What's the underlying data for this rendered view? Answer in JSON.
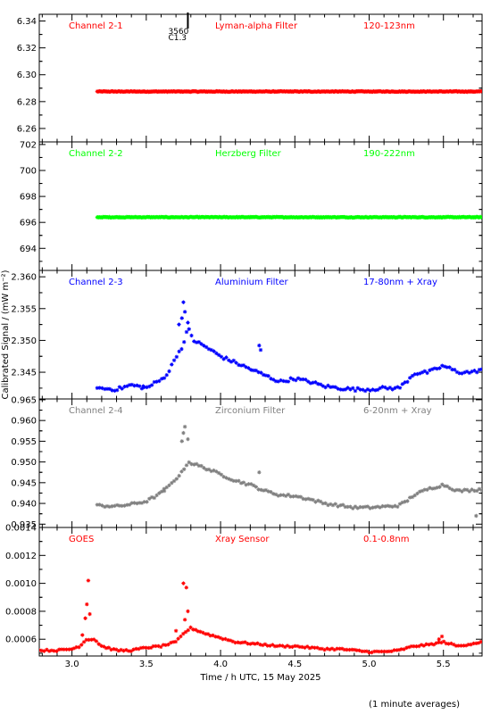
{
  "chart_data": [
    {
      "type": "scatter",
      "label_left": "Channel 2-1",
      "label_mid": "Lyman-alpha Filter",
      "label_right": "120-123nm",
      "color": "#ff0000",
      "ylim": [
        6.25,
        6.345
      ],
      "yticks": [
        "6.26",
        "6.28",
        "6.30",
        "6.32",
        "6.34"
      ],
      "flare_marker": {
        "x": 3.78,
        "number": "3560",
        "class": "C1.3"
      },
      "series": [
        {
          "generator": "flat",
          "x_start": 3.17,
          "x_end": 5.76,
          "level": 6.2875,
          "noise": 0.0003
        }
      ]
    },
    {
      "type": "scatter",
      "label_left": "Channel 2-2",
      "label_mid": "Herzberg Filter",
      "label_right": "190-222nm",
      "color": "#00ff00",
      "ylim": [
        692.3,
        702.2
      ],
      "yticks": [
        "694",
        "696",
        "698",
        "700",
        "702"
      ],
      "series": [
        {
          "generator": "flat",
          "x_start": 3.17,
          "x_end": 5.76,
          "level": 696.4,
          "noise": 0.03
        }
      ]
    },
    {
      "type": "scatter",
      "label_left": "Channel 2-3",
      "label_mid": "Aluminium Filter",
      "label_right": "17-80nm + Xray",
      "color": "#0000ff",
      "ylim": [
        2.3408,
        2.361
      ],
      "yticks": [
        "2.345",
        "2.350",
        "2.355",
        "2.360"
      ],
      "series": [
        {
          "generator": "profile",
          "x_start": 3.17,
          "x_end": 5.76,
          "profile": [
            [
              3.17,
              2.3425
            ],
            [
              3.3,
              2.3423
            ],
            [
              3.4,
              2.343
            ],
            [
              3.5,
              2.3425
            ],
            [
              3.55,
              2.3432
            ],
            [
              3.6,
              2.3438
            ],
            [
              3.65,
              2.345
            ],
            [
              3.7,
              2.3475
            ],
            [
              3.73,
              2.3485
            ],
            [
              3.76,
              2.35
            ],
            [
              3.78,
              2.352
            ],
            [
              3.82,
              2.35
            ],
            [
              3.9,
              2.349
            ],
            [
              4.0,
              2.3475
            ],
            [
              4.1,
              2.3465
            ],
            [
              4.2,
              2.3455
            ],
            [
              4.3,
              2.3445
            ],
            [
              4.4,
              2.3435
            ],
            [
              4.5,
              2.344
            ],
            [
              4.6,
              2.3435
            ],
            [
              4.7,
              2.3428
            ],
            [
              4.8,
              2.3425
            ],
            [
              4.9,
              2.3423
            ],
            [
              5.0,
              2.3423
            ],
            [
              5.1,
              2.3425
            ],
            [
              5.2,
              2.3425
            ],
            [
              5.25,
              2.3435
            ],
            [
              5.3,
              2.3448
            ],
            [
              5.4,
              2.345
            ],
            [
              5.5,
              2.346
            ],
            [
              5.6,
              2.345
            ],
            [
              5.7,
              2.345
            ],
            [
              5.76,
              2.3455
            ]
          ],
          "spikes": [
            [
              3.72,
              2.3525
            ],
            [
              3.74,
              2.3535
            ],
            [
              3.75,
              2.356
            ],
            [
              3.76,
              2.3545
            ],
            [
              3.78,
              2.3528
            ],
            [
              4.26,
              2.3492
            ],
            [
              4.27,
              2.3485
            ],
            [
              3.48,
              2.3428
            ]
          ],
          "noise": 0.00025
        }
      ]
    },
    {
      "type": "scatter",
      "label_left": "Channel 2-4",
      "label_mid": "Zirconium Filter",
      "label_right": "6-20nm + Xray",
      "color": "#808080",
      "ylim": [
        0.9342,
        0.9652
      ],
      "yticks": [
        "0.935",
        "0.940",
        "0.945",
        "0.950",
        "0.955",
        "0.960",
        "0.965"
      ],
      "series": [
        {
          "generator": "profile",
          "x_start": 3.17,
          "x_end": 5.76,
          "profile": [
            [
              3.17,
              0.9395
            ],
            [
              3.3,
              0.9393
            ],
            [
              3.4,
              0.9398
            ],
            [
              3.5,
              0.9405
            ],
            [
              3.55,
              0.9415
            ],
            [
              3.6,
              0.9425
            ],
            [
              3.65,
              0.944
            ],
            [
              3.7,
              0.946
            ],
            [
              3.74,
              0.9475
            ],
            [
              3.78,
              0.95
            ],
            [
              3.82,
              0.9495
            ],
            [
              3.9,
              0.9485
            ],
            [
              4.0,
              0.947
            ],
            [
              4.1,
              0.9455
            ],
            [
              4.2,
              0.9445
            ],
            [
              4.3,
              0.943
            ],
            [
              4.4,
              0.942
            ],
            [
              4.5,
              0.9418
            ],
            [
              4.6,
              0.941
            ],
            [
              4.7,
              0.94
            ],
            [
              4.8,
              0.9395
            ],
            [
              4.9,
              0.939
            ],
            [
              5.0,
              0.939
            ],
            [
              5.1,
              0.9392
            ],
            [
              5.2,
              0.9395
            ],
            [
              5.25,
              0.9405
            ],
            [
              5.3,
              0.942
            ],
            [
              5.4,
              0.9435
            ],
            [
              5.5,
              0.9445
            ],
            [
              5.6,
              0.943
            ],
            [
              5.7,
              0.9432
            ],
            [
              5.76,
              0.9435
            ]
          ],
          "spikes": [
            [
              3.74,
              0.955
            ],
            [
              3.75,
              0.957
            ],
            [
              3.76,
              0.9585
            ],
            [
              3.78,
              0.9555
            ],
            [
              4.26,
              0.9475
            ],
            [
              3.62,
              0.9435
            ],
            [
              5.72,
              0.937
            ]
          ],
          "noise": 0.0003
        }
      ]
    },
    {
      "type": "scatter",
      "label_left": "GOES",
      "label_mid": "Xray Sensor",
      "label_right": "0.1-0.8nm",
      "color": "#ff0000",
      "ylim": [
        0.00048,
        0.0014
      ],
      "yticks": [
        "0.0006",
        "0.0008",
        "0.0010",
        "0.0012",
        "0.0014"
      ],
      "xlabel": "Time / h UTC, 15 May 2025",
      "xticks": [
        "3.0",
        "3.5",
        "4.0",
        "4.5",
        "5.0",
        "5.5"
      ],
      "xlim": [
        2.78,
        5.76
      ],
      "series": [
        {
          "generator": "profile",
          "x_start": 2.78,
          "x_end": 5.76,
          "profile": [
            [
              2.78,
              0.00052
            ],
            [
              2.9,
              0.00052
            ],
            [
              3.0,
              0.00053
            ],
            [
              3.05,
              0.00055
            ],
            [
              3.08,
              0.00058
            ],
            [
              3.1,
              0.0006
            ],
            [
              3.15,
              0.0006
            ],
            [
              3.2,
              0.00055
            ],
            [
              3.3,
              0.00052
            ],
            [
              3.4,
              0.00052
            ],
            [
              3.5,
              0.00054
            ],
            [
              3.6,
              0.00055
            ],
            [
              3.7,
              0.00058
            ],
            [
              3.76,
              0.00065
            ],
            [
              3.8,
              0.00068
            ],
            [
              3.9,
              0.00064
            ],
            [
              4.0,
              0.00061
            ],
            [
              4.1,
              0.00058
            ],
            [
              4.2,
              0.00057
            ],
            [
              4.3,
              0.00056
            ],
            [
              4.4,
              0.00055
            ],
            [
              4.5,
              0.00055
            ],
            [
              4.6,
              0.00054
            ],
            [
              4.7,
              0.00053
            ],
            [
              4.8,
              0.00053
            ],
            [
              4.9,
              0.00052
            ],
            [
              5.0,
              0.00051
            ],
            [
              5.1,
              0.00051
            ],
            [
              5.2,
              0.00052
            ],
            [
              5.3,
              0.00055
            ],
            [
              5.4,
              0.00056
            ],
            [
              5.5,
              0.00058
            ],
            [
              5.6,
              0.00055
            ],
            [
              5.7,
              0.00057
            ],
            [
              5.76,
              0.00058
            ]
          ],
          "spikes": [
            [
              3.07,
              0.00063
            ],
            [
              3.09,
              0.00075
            ],
            [
              3.1,
              0.00085
            ],
            [
              3.11,
              0.00102
            ],
            [
              3.12,
              0.00078
            ],
            [
              3.75,
              0.001
            ],
            [
              3.77,
              0.00097
            ],
            [
              3.78,
              0.0008
            ],
            [
              3.76,
              0.00074
            ],
            [
              3.7,
              0.00066
            ],
            [
              5.49,
              0.00062
            ],
            [
              5.47,
              0.0006
            ]
          ],
          "noise": 6e-06
        }
      ]
    }
  ],
  "ylabel": "Calibrated Signal / (mW m⁻²)",
  "footer_note": "(1 minute averages)"
}
